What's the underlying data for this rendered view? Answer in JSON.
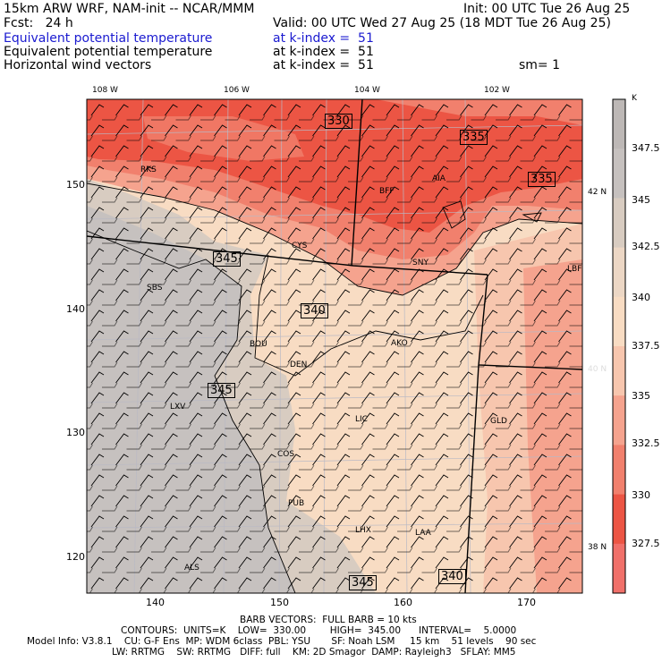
{
  "header": {
    "model": "15km ARW WRF, NAM-init -- NCAR/MMM",
    "init": "Init: 00 UTC Tue 26 Aug 25",
    "fcst": "Fcst:   24 h",
    "valid": "Valid: 00 UTC Wed 27 Aug 25 (18 MDT Tue 26 Aug 25)",
    "fields": [
      {
        "name": "Equivalent potential temperature",
        "level": "at k-index =  51"
      },
      {
        "name": "Equivalent potential temperature",
        "level": "at k-index =  51"
      },
      {
        "name": "Horizontal wind vectors",
        "level": "at k-index =  51"
      }
    ],
    "smoothing": "sm= 1"
  },
  "map": {
    "lon_labels": [
      "108 W",
      "106 W",
      "104 W",
      "102 W"
    ],
    "lat_labels": [
      "42 N",
      "40 N",
      "38 N"
    ],
    "x_ticks": [
      "140",
      "150",
      "160",
      "170"
    ],
    "y_ticks": [
      "150",
      "140",
      "130",
      "120"
    ],
    "stations": [
      "RKS",
      "CYS",
      "BFF",
      "AIA",
      "SNY",
      "LBF",
      "SBS",
      "BOU",
      "DEN",
      "AKO",
      "LXV",
      "LIC",
      "COS",
      "GLD",
      "PUB",
      "LHX",
      "LAA",
      "ALS"
    ],
    "contour_labels": [
      "330",
      "335",
      "335",
      "345",
      "340",
      "345",
      "345",
      "340"
    ]
  },
  "colorbar": {
    "unit": "K",
    "labels": [
      "347.5",
      "345",
      "342.5",
      "340",
      "337.5",
      "335",
      "332.5",
      "330",
      "327.5"
    ],
    "colors": [
      "#c6c1bf",
      "#d8ccc1",
      "#ecd7c5",
      "#f8dcc3",
      "#f7c6ae",
      "#f5a38e",
      "#f1806d",
      "#ec5544",
      "#f0706a"
    ]
  },
  "footer": {
    "barb": "BARB VECTORS:  FULL BARB = 10 kts",
    "contours": "CONTOURS:  UNITS=K    LOW=  330.00        HIGH=  345.00      INTERVAL=    5.0000",
    "model_info_1": "Model Info: V3.8.1    CU: G-F Ens  MP: WDM 6class  PBL: YSU       SF: Noah LSM     15 km    51 levels    90 sec",
    "model_info_2": "LW: RRTMG    SW: RRTMG   DIFF: full    KM: 2D Smagor  DAMP: Rayleigh3   SFLAY: MM5"
  }
}
